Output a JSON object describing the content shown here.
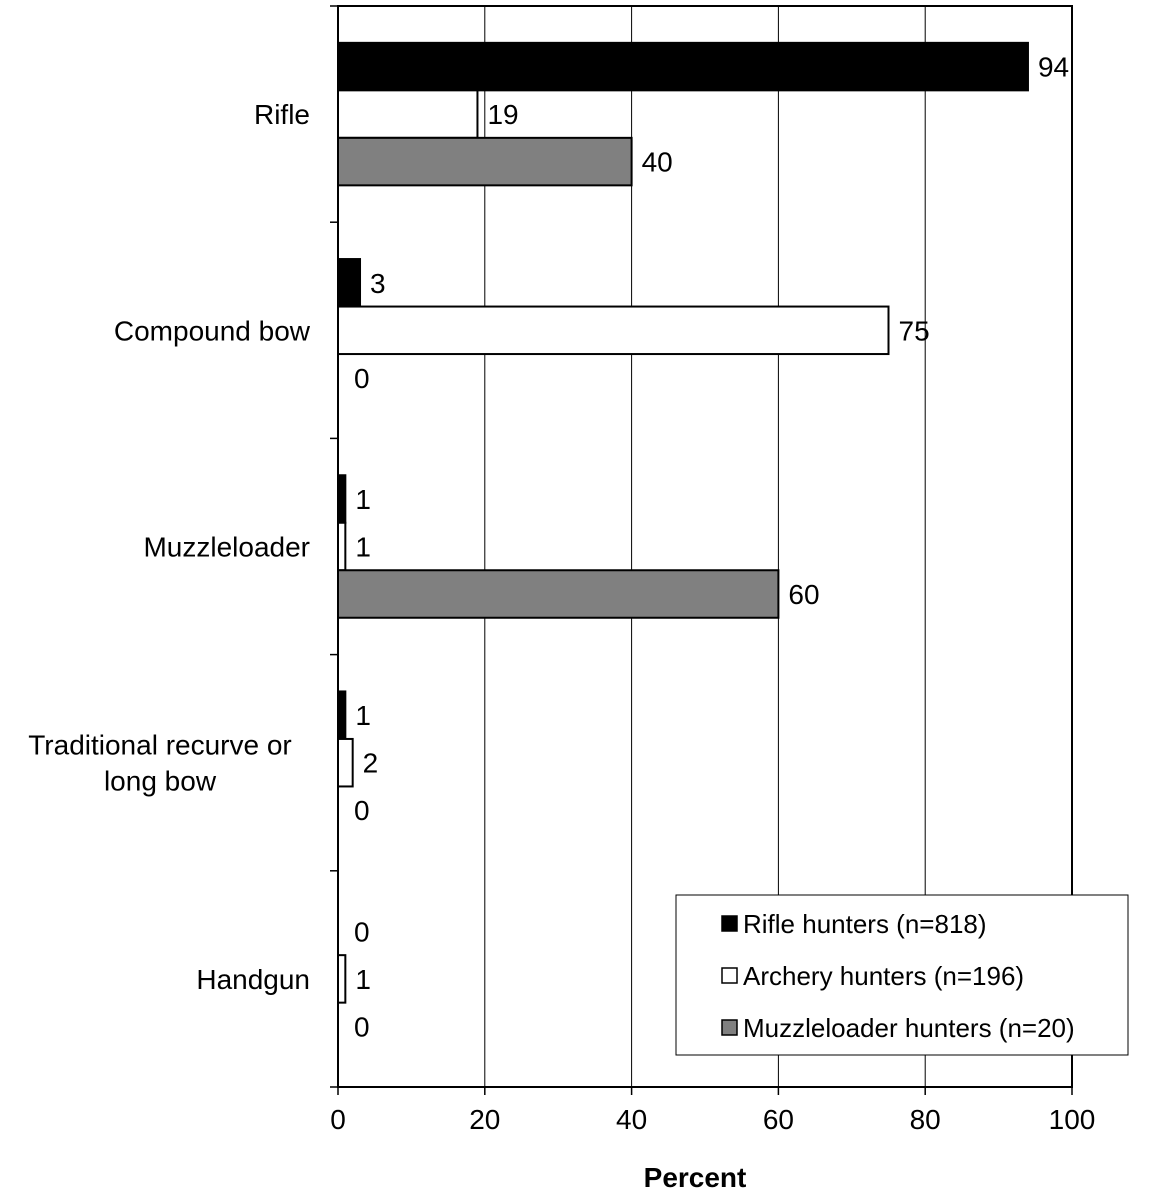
{
  "chart_data": {
    "type": "bar",
    "orientation": "horizontal",
    "categories": [
      "Rifle",
      "Compound bow",
      "Muzzleloader",
      "Traditional recurve or long bow",
      "Handgun"
    ],
    "category_lines": [
      [
        "Rifle"
      ],
      [
        "Compound bow"
      ],
      [
        "Muzzleloader"
      ],
      [
        "Traditional recurve or",
        "long bow"
      ],
      [
        "Handgun"
      ]
    ],
    "series": [
      {
        "name": "Rifle hunters (n=818)",
        "color": "#000000",
        "values": [
          94,
          3,
          1,
          1,
          0
        ]
      },
      {
        "name": "Archery hunters (n=196)",
        "color": "#ffffff",
        "values": [
          19,
          75,
          1,
          2,
          1
        ]
      },
      {
        "name": "Muzzleloader hunters (n=20)",
        "color": "#808080",
        "values": [
          40,
          0,
          60,
          0,
          0
        ]
      }
    ],
    "xlabel": "Percent",
    "ylabel": "",
    "xlim": [
      0,
      100
    ],
    "xticks": [
      0,
      20,
      40,
      60,
      80,
      100
    ],
    "grid": "vertical",
    "legend_position": "bottom-right"
  }
}
